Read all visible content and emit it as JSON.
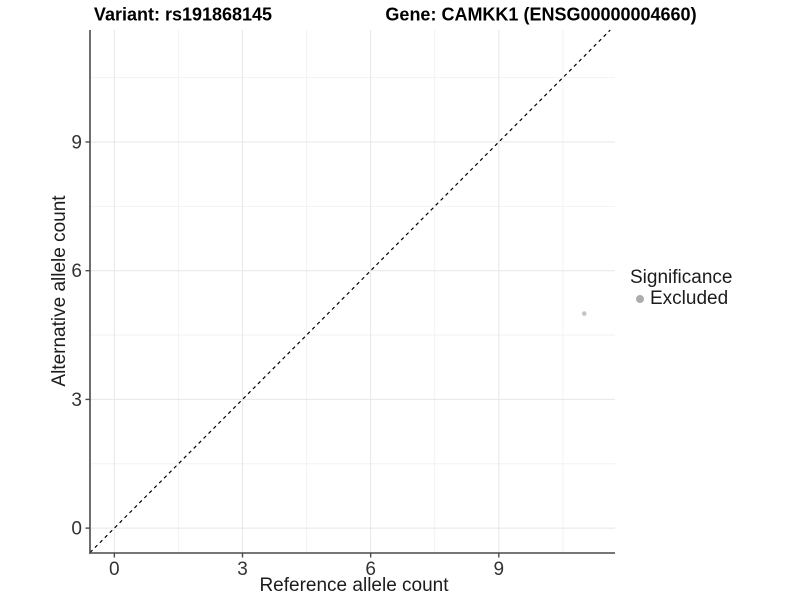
{
  "title": {
    "variant": "Variant: rs191868145",
    "gene": "Gene: CAMKK1 (ENSG00000004660)"
  },
  "chart_data": {
    "type": "scatter",
    "xlabel": "Reference allele count",
    "ylabel": "Alternative allele count",
    "xticks": [
      0,
      3,
      6,
      9
    ],
    "yticks": [
      0,
      3,
      6,
      9
    ],
    "xlim": [
      -0.57,
      11.72
    ],
    "ylim": [
      -0.58,
      11.61
    ],
    "minor_gridlines_x": [
      1.5,
      4.5,
      7.5,
      10.5
    ],
    "minor_gridlines_y": [
      1.5,
      4.5,
      7.5,
      10.5
    ],
    "points": [
      {
        "x": 11,
        "y": 5,
        "significance": "Excluded"
      }
    ],
    "reference_line": {
      "type": "identity y=x",
      "style": "dashed",
      "color": "#000000"
    },
    "legend": {
      "title": "Significance",
      "position": "right",
      "items": [
        {
          "label": "Excluded",
          "color": "#acacac"
        }
      ]
    },
    "colors": {
      "point": "#c5c5c5",
      "grid_major": "#e7e7e7",
      "grid_minor": "#f2f2f2",
      "axis": "#4a4a4a",
      "tick_label": "#333333"
    },
    "grid": true
  }
}
